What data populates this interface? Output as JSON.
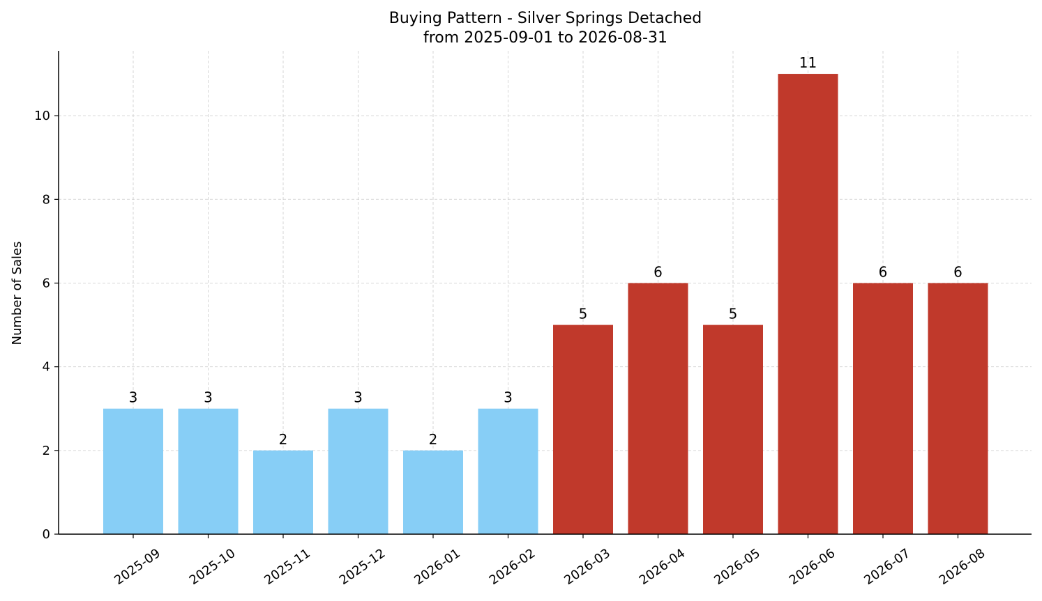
{
  "chart_data": {
    "type": "bar",
    "title": "Buying Pattern - Silver Springs Detached",
    "subtitle": "from 2025-09-01 to 2026-08-31",
    "xlabel": "",
    "ylabel": "Number of Sales",
    "categories": [
      "2025-09",
      "2025-10",
      "2025-11",
      "2025-12",
      "2026-01",
      "2026-02",
      "2026-03",
      "2026-04",
      "2026-05",
      "2026-06",
      "2026-07",
      "2026-08"
    ],
    "values": [
      3,
      3,
      2,
      3,
      2,
      3,
      5,
      6,
      5,
      11,
      6,
      6
    ],
    "bar_colors": [
      "#87CEF6",
      "#87CEF6",
      "#87CEF6",
      "#87CEF6",
      "#87CEF6",
      "#87CEF6",
      "#C0392B",
      "#C0392B",
      "#C0392B",
      "#C0392B",
      "#C0392B",
      "#C0392B"
    ],
    "yticks": [
      0,
      2,
      4,
      6,
      8,
      10
    ],
    "ylim": [
      0,
      11.55
    ],
    "grid": true,
    "data_labels": true
  }
}
